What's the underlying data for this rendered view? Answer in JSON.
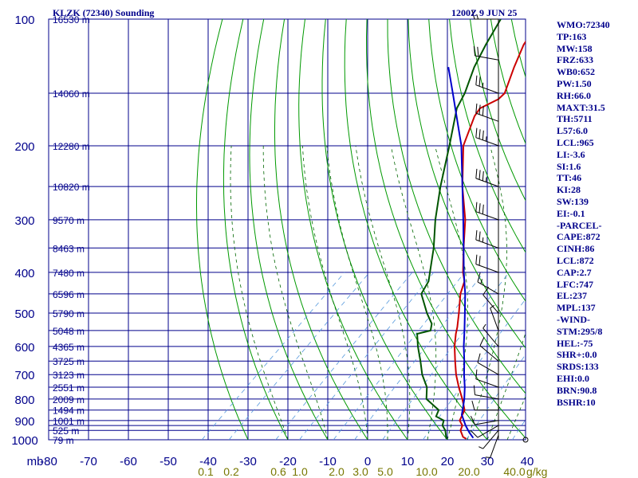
{
  "header": {
    "station": "KLZK (72340) Sounding",
    "datetime": "1200Z  9 JUN 25"
  },
  "colors": {
    "grid": "#00008b",
    "temperature": "#cc0000",
    "dewpoint": "#005500",
    "parcel": "#0000cc",
    "dry_adiabat": "#009900",
    "moist_adiabat": "#006600",
    "mixing_ratio": "#5599dd",
    "mixing_label": "#777700",
    "wind": "#000000"
  },
  "indices": [
    "WMO:72340",
    "TP:163",
    "MW:158",
    "FRZ:633",
    "WB0:652",
    "PW:1.50",
    "RH:66.0",
    "MAXT:31.5",
    "TH:5711",
    "L57:6.0",
    "LCL:965",
    "LI:-3.6",
    "SI:1.6",
    "TT:46",
    "KI:28",
    "SW:139",
    "EI:-0.1",
    "-PARCEL-",
    "CAPE:872",
    "CINH:86",
    "LCL:872",
    "CAP:2.7",
    "LFC:747",
    "EL:237",
    "MPL:137",
    "-WIND-",
    "STM:295/8",
    "HEL:-75",
    "SHR+:0.0",
    "SRDS:133",
    "EHI:0.0",
    "BRN:90.8",
    "BSHR:10"
  ],
  "chart_data": {
    "type": "line",
    "title": "KLZK (72340) Sounding",
    "subtitle": "1200Z  9 JUN 25",
    "x_axis": "skewed temperature (C)",
    "y_axis": "pressure (mb), log scale",
    "ylim": [
      1000,
      100
    ],
    "xlim": [
      -80,
      40
    ],
    "pressure_labels": [
      "100",
      "200",
      "300",
      "400",
      "500",
      "600",
      "700",
      "800",
      "900",
      "1000"
    ],
    "pressure_levels": [
      100,
      150,
      200,
      250,
      300,
      350,
      400,
      450,
      500,
      550,
      600,
      650,
      700,
      750,
      800,
      850,
      900,
      925,
      950,
      1000
    ],
    "temperature_labels": [
      "mb",
      "-80",
      "-70",
      "-60",
      "-50",
      "-40",
      "-30",
      "-20",
      "-10",
      "0",
      "10",
      "20",
      "30",
      "40"
    ],
    "temperature_ticks": [
      -80,
      -70,
      -60,
      -50,
      -40,
      -30,
      -20,
      -10,
      0,
      10,
      20,
      30,
      40
    ],
    "height_labels": [
      {
        "p": 100,
        "label": "16530 m"
      },
      {
        "p": 150,
        "label": "14060 m"
      },
      {
        "p": 200,
        "label": "12280 m"
      },
      {
        "p": 250,
        "label": "10820 m"
      },
      {
        "p": 300,
        "label": "9570 m"
      },
      {
        "p": 350,
        "label": "8463 m"
      },
      {
        "p": 400,
        "label": "7480 m"
      },
      {
        "p": 450,
        "label": "6596 m"
      },
      {
        "p": 500,
        "label": "5790 m"
      },
      {
        "p": 550,
        "label": "5048 m"
      },
      {
        "p": 600,
        "label": "4365 m"
      },
      {
        "p": 650,
        "label": "3725 m"
      },
      {
        "p": 700,
        "label": "3123 m"
      },
      {
        "p": 750,
        "label": "2551 m"
      },
      {
        "p": 800,
        "label": "2009 m"
      },
      {
        "p": 850,
        "label": "1494 m"
      },
      {
        "p": 900,
        "label": "1001 m"
      },
      {
        "p": 950,
        "label": "525 m"
      },
      {
        "p": 1000,
        "label": "79 m"
      }
    ],
    "mixing_ratio_labels": [
      {
        "value": 0.1,
        "label": "0.1"
      },
      {
        "value": 0.2,
        "label": "0.2"
      },
      {
        "value": 0.6,
        "label": "0.6"
      },
      {
        "value": 1.0,
        "label": "1.0"
      },
      {
        "value": 2.0,
        "label": "2.0"
      },
      {
        "value": 3.0,
        "label": "3.0"
      },
      {
        "value": 5.0,
        "label": "5.0"
      },
      {
        "value": 10.0,
        "label": "10.0"
      },
      {
        "value": 20.0,
        "label": "20.0"
      },
      {
        "value": 40.0,
        "label": "40.0"
      }
    ],
    "mixing_ratio_unit": "g/kg",
    "dry_adiabats_thetas": [
      -30,
      -20,
      -10,
      0,
      10,
      20,
      30,
      40,
      50,
      60,
      70,
      80,
      90,
      100,
      110,
      120,
      130,
      140,
      150,
      160,
      170,
      180,
      190,
      200,
      210
    ],
    "moist_adiabats_thetae": [
      -20,
      -10,
      0,
      5,
      10,
      15,
      20,
      25,
      30,
      35,
      40,
      45,
      50
    ],
    "series": [
      {
        "name": "temperature",
        "points": [
          {
            "p": 995,
            "t": 24.5
          },
          {
            "p": 985,
            "t": 23.2
          },
          {
            "p": 950,
            "t": 20.8
          },
          {
            "p": 925,
            "t": 20.0
          },
          {
            "p": 900,
            "t": 18.0
          },
          {
            "p": 850,
            "t": 16.5
          },
          {
            "p": 800,
            "t": 13.0
          },
          {
            "p": 750,
            "t": 9.0
          },
          {
            "p": 700,
            "t": 5.0
          },
          {
            "p": 650,
            "t": 1.2
          },
          {
            "p": 600,
            "t": -2.8
          },
          {
            "p": 560,
            "t": -5.8
          },
          {
            "p": 540,
            "t": -7.2
          },
          {
            "p": 500,
            "t": -10.5
          },
          {
            "p": 450,
            "t": -15.2
          },
          {
            "p": 420,
            "t": -17.5
          },
          {
            "p": 400,
            "t": -20.2
          },
          {
            "p": 350,
            "t": -26.5
          },
          {
            "p": 300,
            "t": -33.5
          },
          {
            "p": 250,
            "t": -43.0
          },
          {
            "p": 200,
            "t": -53.5
          },
          {
            "p": 170,
            "t": -58.5
          },
          {
            "p": 163,
            "t": -59.2
          },
          {
            "p": 155,
            "t": -57.0
          },
          {
            "p": 150,
            "t": -57.0
          },
          {
            "p": 130,
            "t": -61.5
          },
          {
            "p": 115,
            "t": -65.0
          },
          {
            "p": 100,
            "t": -67.5
          }
        ]
      },
      {
        "name": "dewpoint",
        "points": [
          {
            "p": 995,
            "t": 19.5
          },
          {
            "p": 950,
            "t": 17.0
          },
          {
            "p": 925,
            "t": 15.0
          },
          {
            "p": 900,
            "t": 14.0
          },
          {
            "p": 880,
            "t": 11.0
          },
          {
            "p": 850,
            "t": 10.0
          },
          {
            "p": 800,
            "t": 4.0
          },
          {
            "p": 750,
            "t": 1.0
          },
          {
            "p": 700,
            "t": -3.5
          },
          {
            "p": 650,
            "t": -7.5
          },
          {
            "p": 600,
            "t": -12.0
          },
          {
            "p": 560,
            "t": -15.5
          },
          {
            "p": 550,
            "t": -13.0
          },
          {
            "p": 530,
            "t": -14.5
          },
          {
            "p": 500,
            "t": -18.5
          },
          {
            "p": 450,
            "t": -25.0
          },
          {
            "p": 420,
            "t": -26.5
          },
          {
            "p": 400,
            "t": -28.5
          },
          {
            "p": 350,
            "t": -34.0
          },
          {
            "p": 300,
            "t": -41.0
          },
          {
            "p": 250,
            "t": -48.5
          },
          {
            "p": 200,
            "t": -57.0
          },
          {
            "p": 163,
            "t": -65.0
          },
          {
            "p": 150,
            "t": -67.0
          },
          {
            "p": 130,
            "t": -71.5
          },
          {
            "p": 115,
            "t": -74.5
          },
          {
            "p": 100,
            "t": -77.5
          }
        ]
      },
      {
        "name": "parcel",
        "points": [
          {
            "p": 990,
            "t": 26.0
          },
          {
            "p": 960,
            "t": 23.5
          },
          {
            "p": 925,
            "t": 20.8
          },
          {
            "p": 872,
            "t": 17.0
          },
          {
            "p": 850,
            "t": 16.0
          },
          {
            "p": 800,
            "t": 13.5
          },
          {
            "p": 750,
            "t": 10.5
          },
          {
            "p": 700,
            "t": 7.0
          },
          {
            "p": 650,
            "t": 3.5
          },
          {
            "p": 600,
            "t": -0.5
          },
          {
            "p": 550,
            "t": -4.5
          },
          {
            "p": 500,
            "t": -9.0
          },
          {
            "p": 450,
            "t": -14.0
          },
          {
            "p": 400,
            "t": -20.0
          },
          {
            "p": 350,
            "t": -26.5
          },
          {
            "p": 300,
            "t": -34.0
          },
          {
            "p": 250,
            "t": -43.0
          },
          {
            "p": 200,
            "t": -54.0
          },
          {
            "p": 150,
            "t": -70.0
          },
          {
            "p": 130,
            "t": -78.0
          }
        ]
      }
    ],
    "wind_barbs": [
      {
        "p": 1000,
        "dir": 0,
        "spd": 0
      },
      {
        "p": 975,
        "dir": 200,
        "spd": 5
      },
      {
        "p": 950,
        "dir": 220,
        "spd": 5
      },
      {
        "p": 925,
        "dir": 240,
        "spd": 10
      },
      {
        "p": 900,
        "dir": 260,
        "spd": 10
      },
      {
        "p": 850,
        "dir": 270,
        "spd": 10
      },
      {
        "p": 800,
        "dir": 280,
        "spd": 10
      },
      {
        "p": 750,
        "dir": 290,
        "spd": 10
      },
      {
        "p": 700,
        "dir": 300,
        "spd": 10
      },
      {
        "p": 650,
        "dir": 310,
        "spd": 10
      },
      {
        "p": 600,
        "dir": 320,
        "spd": 5
      },
      {
        "p": 550,
        "dir": 340,
        "spd": 5
      },
      {
        "p": 500,
        "dir": 320,
        "spd": 10
      },
      {
        "p": 450,
        "dir": 300,
        "spd": 15
      },
      {
        "p": 400,
        "dir": 290,
        "spd": 20
      },
      {
        "p": 350,
        "dir": 290,
        "spd": 25
      },
      {
        "p": 300,
        "dir": 290,
        "spd": 30
      },
      {
        "p": 250,
        "dir": 290,
        "spd": 35
      },
      {
        "p": 200,
        "dir": 290,
        "spd": 35
      },
      {
        "p": 175,
        "dir": 290,
        "spd": 30
      },
      {
        "p": 150,
        "dir": 290,
        "spd": 25
      },
      {
        "p": 125,
        "dir": 280,
        "spd": 20
      },
      {
        "p": 100,
        "dir": 270,
        "spd": 15
      }
    ],
    "grid": true
  }
}
